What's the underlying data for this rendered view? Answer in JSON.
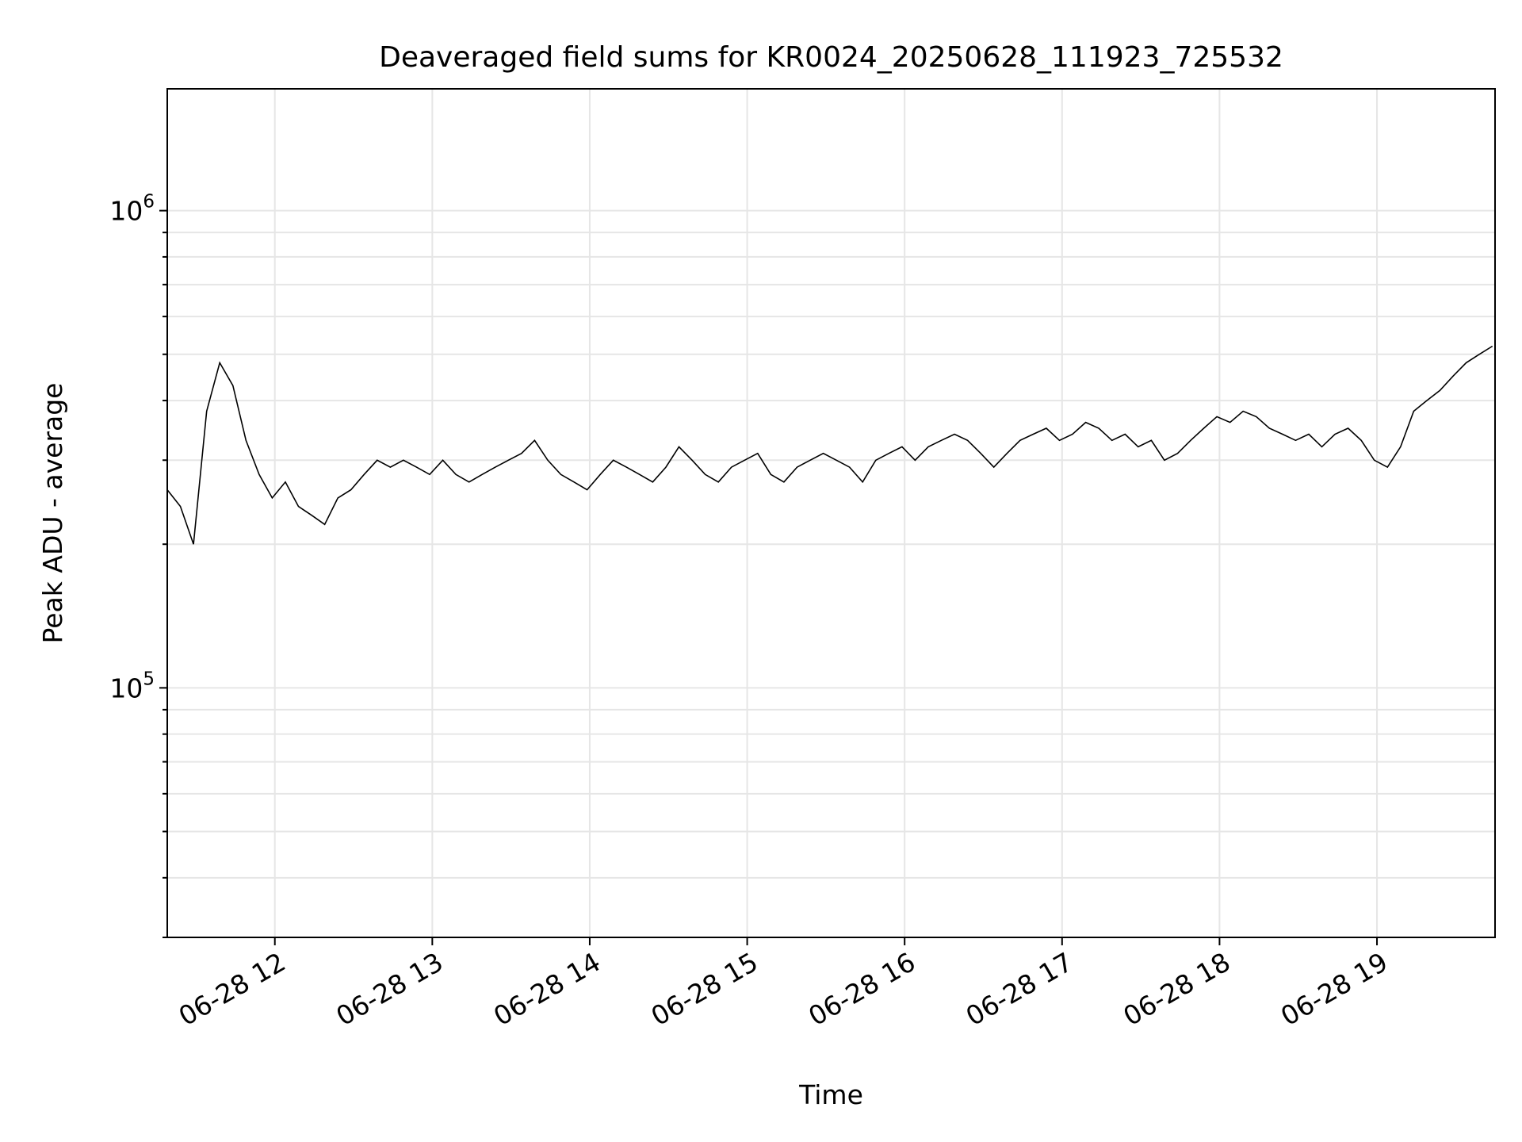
{
  "chart_data": {
    "type": "line",
    "title": "Deaveraged field sums for KR0024_20250628_111923_725532",
    "xlabel": "Time",
    "ylabel": "Peak ADU - average",
    "yscale": "log",
    "xlim": [
      "06-28 11:19",
      "06-28 19:45"
    ],
    "ylim": [
      30000,
      1800000
    ],
    "x_ticks": [
      {
        "value": "06-28 12:00",
        "label": "06-28 12"
      },
      {
        "value": "06-28 13:00",
        "label": "06-28 13"
      },
      {
        "value": "06-28 14:00",
        "label": "06-28 14"
      },
      {
        "value": "06-28 15:00",
        "label": "06-28 15"
      },
      {
        "value": "06-28 16:00",
        "label": "06-28 16"
      },
      {
        "value": "06-28 17:00",
        "label": "06-28 17"
      },
      {
        "value": "06-28 18:00",
        "label": "06-28 18"
      },
      {
        "value": "06-28 19:00",
        "label": "06-28 19"
      }
    ],
    "y_ticks": [
      {
        "value": 100000,
        "base": "10",
        "exp": "5"
      },
      {
        "value": 1000000,
        "base": "10",
        "exp": "6"
      }
    ],
    "grid": true,
    "line_color": "#000000",
    "series": [
      {
        "points": [
          [
            "06-28 11:19",
            260000
          ],
          [
            "06-28 11:24",
            240000
          ],
          [
            "06-28 11:29",
            200000
          ],
          [
            "06-28 11:34",
            380000
          ],
          [
            "06-28 11:39",
            480000
          ],
          [
            "06-28 11:44",
            430000
          ],
          [
            "06-28 11:49",
            330000
          ],
          [
            "06-28 11:54",
            280000
          ],
          [
            "06-28 11:59",
            250000
          ],
          [
            "06-28 12:04",
            270000
          ],
          [
            "06-28 12:09",
            240000
          ],
          [
            "06-28 12:14",
            230000
          ],
          [
            "06-28 12:19",
            220000
          ],
          [
            "06-28 12:24",
            250000
          ],
          [
            "06-28 12:29",
            260000
          ],
          [
            "06-28 12:34",
            280000
          ],
          [
            "06-28 12:39",
            300000
          ],
          [
            "06-28 12:44",
            290000
          ],
          [
            "06-28 12:49",
            300000
          ],
          [
            "06-28 12:54",
            290000
          ],
          [
            "06-28 12:59",
            280000
          ],
          [
            "06-28 13:04",
            300000
          ],
          [
            "06-28 13:09",
            280000
          ],
          [
            "06-28 13:14",
            270000
          ],
          [
            "06-28 13:19",
            280000
          ],
          [
            "06-28 13:24",
            290000
          ],
          [
            "06-28 13:29",
            300000
          ],
          [
            "06-28 13:34",
            310000
          ],
          [
            "06-28 13:39",
            330000
          ],
          [
            "06-28 13:44",
            300000
          ],
          [
            "06-28 13:49",
            280000
          ],
          [
            "06-28 13:54",
            270000
          ],
          [
            "06-28 13:59",
            260000
          ],
          [
            "06-28 14:04",
            280000
          ],
          [
            "06-28 14:09",
            300000
          ],
          [
            "06-28 14:14",
            290000
          ],
          [
            "06-28 14:19",
            280000
          ],
          [
            "06-28 14:24",
            270000
          ],
          [
            "06-28 14:29",
            290000
          ],
          [
            "06-28 14:34",
            320000
          ],
          [
            "06-28 14:39",
            300000
          ],
          [
            "06-28 14:44",
            280000
          ],
          [
            "06-28 14:49",
            270000
          ],
          [
            "06-28 14:54",
            290000
          ],
          [
            "06-28 14:59",
            300000
          ],
          [
            "06-28 15:04",
            310000
          ],
          [
            "06-28 15:09",
            280000
          ],
          [
            "06-28 15:14",
            270000
          ],
          [
            "06-28 15:19",
            290000
          ],
          [
            "06-28 15:24",
            300000
          ],
          [
            "06-28 15:29",
            310000
          ],
          [
            "06-28 15:34",
            300000
          ],
          [
            "06-28 15:39",
            290000
          ],
          [
            "06-28 15:44",
            270000
          ],
          [
            "06-28 15:49",
            300000
          ],
          [
            "06-28 15:54",
            310000
          ],
          [
            "06-28 15:59",
            320000
          ],
          [
            "06-28 16:04",
            300000
          ],
          [
            "06-28 16:09",
            320000
          ],
          [
            "06-28 16:14",
            330000
          ],
          [
            "06-28 16:19",
            340000
          ],
          [
            "06-28 16:24",
            330000
          ],
          [
            "06-28 16:29",
            310000
          ],
          [
            "06-28 16:34",
            290000
          ],
          [
            "06-28 16:39",
            310000
          ],
          [
            "06-28 16:44",
            330000
          ],
          [
            "06-28 16:49",
            340000
          ],
          [
            "06-28 16:54",
            350000
          ],
          [
            "06-28 16:59",
            330000
          ],
          [
            "06-28 17:04",
            340000
          ],
          [
            "06-28 17:09",
            360000
          ],
          [
            "06-28 17:14",
            350000
          ],
          [
            "06-28 17:19",
            330000
          ],
          [
            "06-28 17:24",
            340000
          ],
          [
            "06-28 17:29",
            320000
          ],
          [
            "06-28 17:34",
            330000
          ],
          [
            "06-28 17:39",
            300000
          ],
          [
            "06-28 17:44",
            310000
          ],
          [
            "06-28 17:49",
            330000
          ],
          [
            "06-28 17:54",
            350000
          ],
          [
            "06-28 17:59",
            370000
          ],
          [
            "06-28 18:04",
            360000
          ],
          [
            "06-28 18:09",
            380000
          ],
          [
            "06-28 18:14",
            370000
          ],
          [
            "06-28 18:19",
            350000
          ],
          [
            "06-28 18:24",
            340000
          ],
          [
            "06-28 18:29",
            330000
          ],
          [
            "06-28 18:34",
            340000
          ],
          [
            "06-28 18:39",
            320000
          ],
          [
            "06-28 18:44",
            340000
          ],
          [
            "06-28 18:49",
            350000
          ],
          [
            "06-28 18:54",
            330000
          ],
          [
            "06-28 18:59",
            300000
          ],
          [
            "06-28 19:04",
            290000
          ],
          [
            "06-28 19:09",
            320000
          ],
          [
            "06-28 19:14",
            380000
          ],
          [
            "06-28 19:19",
            400000
          ],
          [
            "06-28 19:24",
            420000
          ],
          [
            "06-28 19:29",
            450000
          ],
          [
            "06-28 19:34",
            480000
          ],
          [
            "06-28 19:39",
            500000
          ],
          [
            "06-28 19:44",
            520000
          ]
        ]
      }
    ]
  }
}
